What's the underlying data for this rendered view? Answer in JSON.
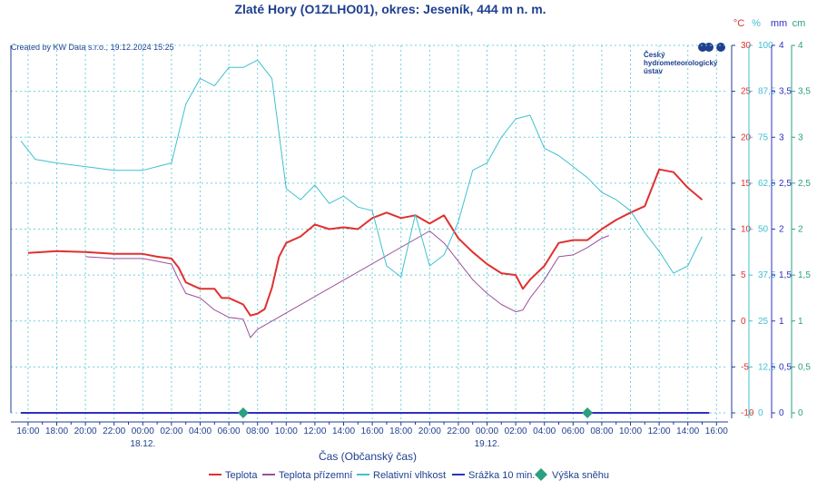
{
  "title": "Zlaté Hory (O1ZLHO01), okres: Jeseník, 444 m n. m.",
  "credit": "Created by KW Data s.r.o., 19.12.2024 15:25",
  "logo": {
    "line1": "Český",
    "line2": "hydrometeorologický",
    "line3": "ústav"
  },
  "chart_data": {
    "type": "line",
    "title": "Zlaté Hory (O1ZLHO01), okres: Jeseník, 444 m n. m.",
    "xlabel": "Čas (Občanský čas)",
    "x_range_hours": [
      -8.5,
      39.5
    ],
    "x_ticks": [
      "16:00",
      "18:00",
      "20:00",
      "22:00",
      "00:00",
      "02:00",
      "04:00",
      "06:00",
      "08:00",
      "10:00",
      "12:00",
      "14:00",
      "16:00",
      "18:00",
      "20:00",
      "22:00",
      "00:00",
      "02:00",
      "04:00",
      "06:00",
      "08:00",
      "10:00",
      "12:00",
      "14:00",
      "16:00"
    ],
    "date_labels": [
      {
        "label": "18.12.",
        "hour": 0
      },
      {
        "label": "19.12.",
        "hour": 24
      }
    ],
    "axes": {
      "temp": {
        "unit": "°C",
        "min": -10,
        "max": 30,
        "ticks": [
          "-10",
          "-5",
          "0",
          "5",
          "10",
          "15",
          "20",
          "25",
          "30"
        ],
        "color": "#e03030"
      },
      "humidity": {
        "unit": "%",
        "min": 0,
        "max": 100,
        "ticks": [
          "0",
          "12,5",
          "25",
          "37,5",
          "50",
          "62,5",
          "75",
          "87,5",
          "100"
        ],
        "color": "#40c0d0"
      },
      "precip": {
        "unit": "mm",
        "min": 0,
        "max": 4,
        "ticks": [
          "0",
          "0,5",
          "1",
          "1,5",
          "2",
          "2,5",
          "3",
          "3,5",
          "4"
        ],
        "color": "#3030c0"
      },
      "snow": {
        "unit": "cm",
        "min": 0,
        "max": 4,
        "ticks": [
          "0",
          "0,5",
          "1",
          "1,5",
          "2",
          "2,5",
          "3",
          "3,5",
          "4"
        ],
        "color": "#2aa080"
      }
    },
    "grid": true,
    "legend_position": "bottom",
    "series": [
      {
        "name": "Teplota",
        "axis": "temp",
        "color": "#e03030",
        "points": [
          [
            -8,
            7.4
          ],
          [
            -6,
            7.6
          ],
          [
            -4,
            7.5
          ],
          [
            -2,
            7.3
          ],
          [
            0,
            7.3
          ],
          [
            1,
            7.0
          ],
          [
            2,
            6.8
          ],
          [
            2.5,
            5.8
          ],
          [
            3,
            4.2
          ],
          [
            4,
            3.5
          ],
          [
            5,
            3.5
          ],
          [
            5.5,
            2.5
          ],
          [
            6,
            2.5
          ],
          [
            7,
            1.8
          ],
          [
            7.5,
            0.6
          ],
          [
            8,
            0.8
          ],
          [
            8.5,
            1.3
          ],
          [
            9,
            3.6
          ],
          [
            9.5,
            7.0
          ],
          [
            10,
            8.5
          ],
          [
            11,
            9.2
          ],
          [
            12,
            10.5
          ],
          [
            13,
            10.0
          ],
          [
            14,
            10.2
          ],
          [
            15,
            10.0
          ],
          [
            16,
            11.2
          ],
          [
            17,
            11.8
          ],
          [
            18,
            11.2
          ],
          [
            19,
            11.5
          ],
          [
            20,
            10.6
          ],
          [
            21,
            11.5
          ],
          [
            22,
            9.0
          ],
          [
            23,
            7.5
          ],
          [
            24,
            6.2
          ],
          [
            25,
            5.2
          ],
          [
            26,
            5.0
          ],
          [
            26.5,
            3.5
          ],
          [
            27,
            4.5
          ],
          [
            28,
            6.0
          ],
          [
            29,
            8.5
          ],
          [
            30,
            8.8
          ],
          [
            31,
            8.8
          ],
          [
            32,
            10.0
          ],
          [
            33,
            11.0
          ],
          [
            34,
            11.8
          ],
          [
            35,
            12.5
          ],
          [
            36,
            16.5
          ],
          [
            37,
            16.2
          ],
          [
            38,
            14.5
          ],
          [
            39,
            13.2
          ]
        ]
      },
      {
        "name": "Teplota přízemní",
        "axis": "temp",
        "color": "#9b4f9b",
        "points": [
          [
            -4,
            7.0
          ],
          [
            -2,
            6.8
          ],
          [
            0,
            6.8
          ],
          [
            1,
            6.5
          ],
          [
            2,
            6.2
          ],
          [
            2.5,
            4.5
          ],
          [
            3,
            3.0
          ],
          [
            4,
            2.5
          ],
          [
            5,
            1.2
          ],
          [
            5.5,
            0.8
          ],
          [
            6,
            0.4
          ],
          [
            7,
            0.2
          ],
          [
            7.5,
            -1.8
          ],
          [
            8,
            -0.9
          ],
          [
            20,
            9.8
          ],
          [
            21,
            8.5
          ],
          [
            22,
            6.5
          ],
          [
            23,
            4.5
          ],
          [
            24,
            3.0
          ],
          [
            25,
            1.8
          ],
          [
            26,
            1.0
          ],
          [
            26.5,
            1.2
          ],
          [
            27,
            2.5
          ],
          [
            28,
            4.5
          ],
          [
            29,
            7.0
          ],
          [
            30,
            7.2
          ],
          [
            31,
            8.0
          ],
          [
            32,
            9.0
          ],
          [
            32.5,
            9.3
          ]
        ]
      },
      {
        "name": "Relativní vlhkost",
        "axis": "humidity",
        "color": "#40c0d0",
        "points": [
          [
            -8.5,
            74
          ],
          [
            -7.5,
            69
          ],
          [
            -6,
            68
          ],
          [
            -4,
            67
          ],
          [
            -2,
            66
          ],
          [
            0,
            66
          ],
          [
            1,
            67
          ],
          [
            2,
            68
          ],
          [
            3,
            84
          ],
          [
            4,
            91
          ],
          [
            5,
            89
          ],
          [
            6,
            94
          ],
          [
            7,
            94
          ],
          [
            8,
            96
          ],
          [
            9,
            91
          ],
          [
            10,
            61
          ],
          [
            11,
            58
          ],
          [
            12,
            62
          ],
          [
            13,
            57
          ],
          [
            14,
            59
          ],
          [
            15,
            56
          ],
          [
            16,
            55
          ],
          [
            17,
            40
          ],
          [
            18,
            37
          ],
          [
            19,
            54
          ],
          [
            20,
            40
          ],
          [
            21,
            43
          ],
          [
            22,
            52
          ],
          [
            23,
            66
          ],
          [
            24,
            68
          ],
          [
            25,
            75
          ],
          [
            26,
            80
          ],
          [
            27,
            81
          ],
          [
            28,
            72
          ],
          [
            29,
            70
          ],
          [
            30,
            67
          ],
          [
            31,
            64
          ],
          [
            32,
            60
          ],
          [
            33,
            58
          ],
          [
            34,
            55
          ],
          [
            35,
            49
          ],
          [
            36,
            44
          ],
          [
            37,
            38
          ],
          [
            38,
            40
          ],
          [
            39,
            48
          ]
        ]
      },
      {
        "name": "Srážka 10 min.",
        "axis": "precip",
        "color": "#3030c0",
        "points": [
          [
            -8.5,
            0
          ],
          [
            39.5,
            0
          ]
        ]
      }
    ],
    "snow_points": [
      {
        "hour": 7,
        "value": 0
      },
      {
        "hour": 31,
        "value": 0
      }
    ],
    "snow_series_name": "Výška sněhu"
  }
}
